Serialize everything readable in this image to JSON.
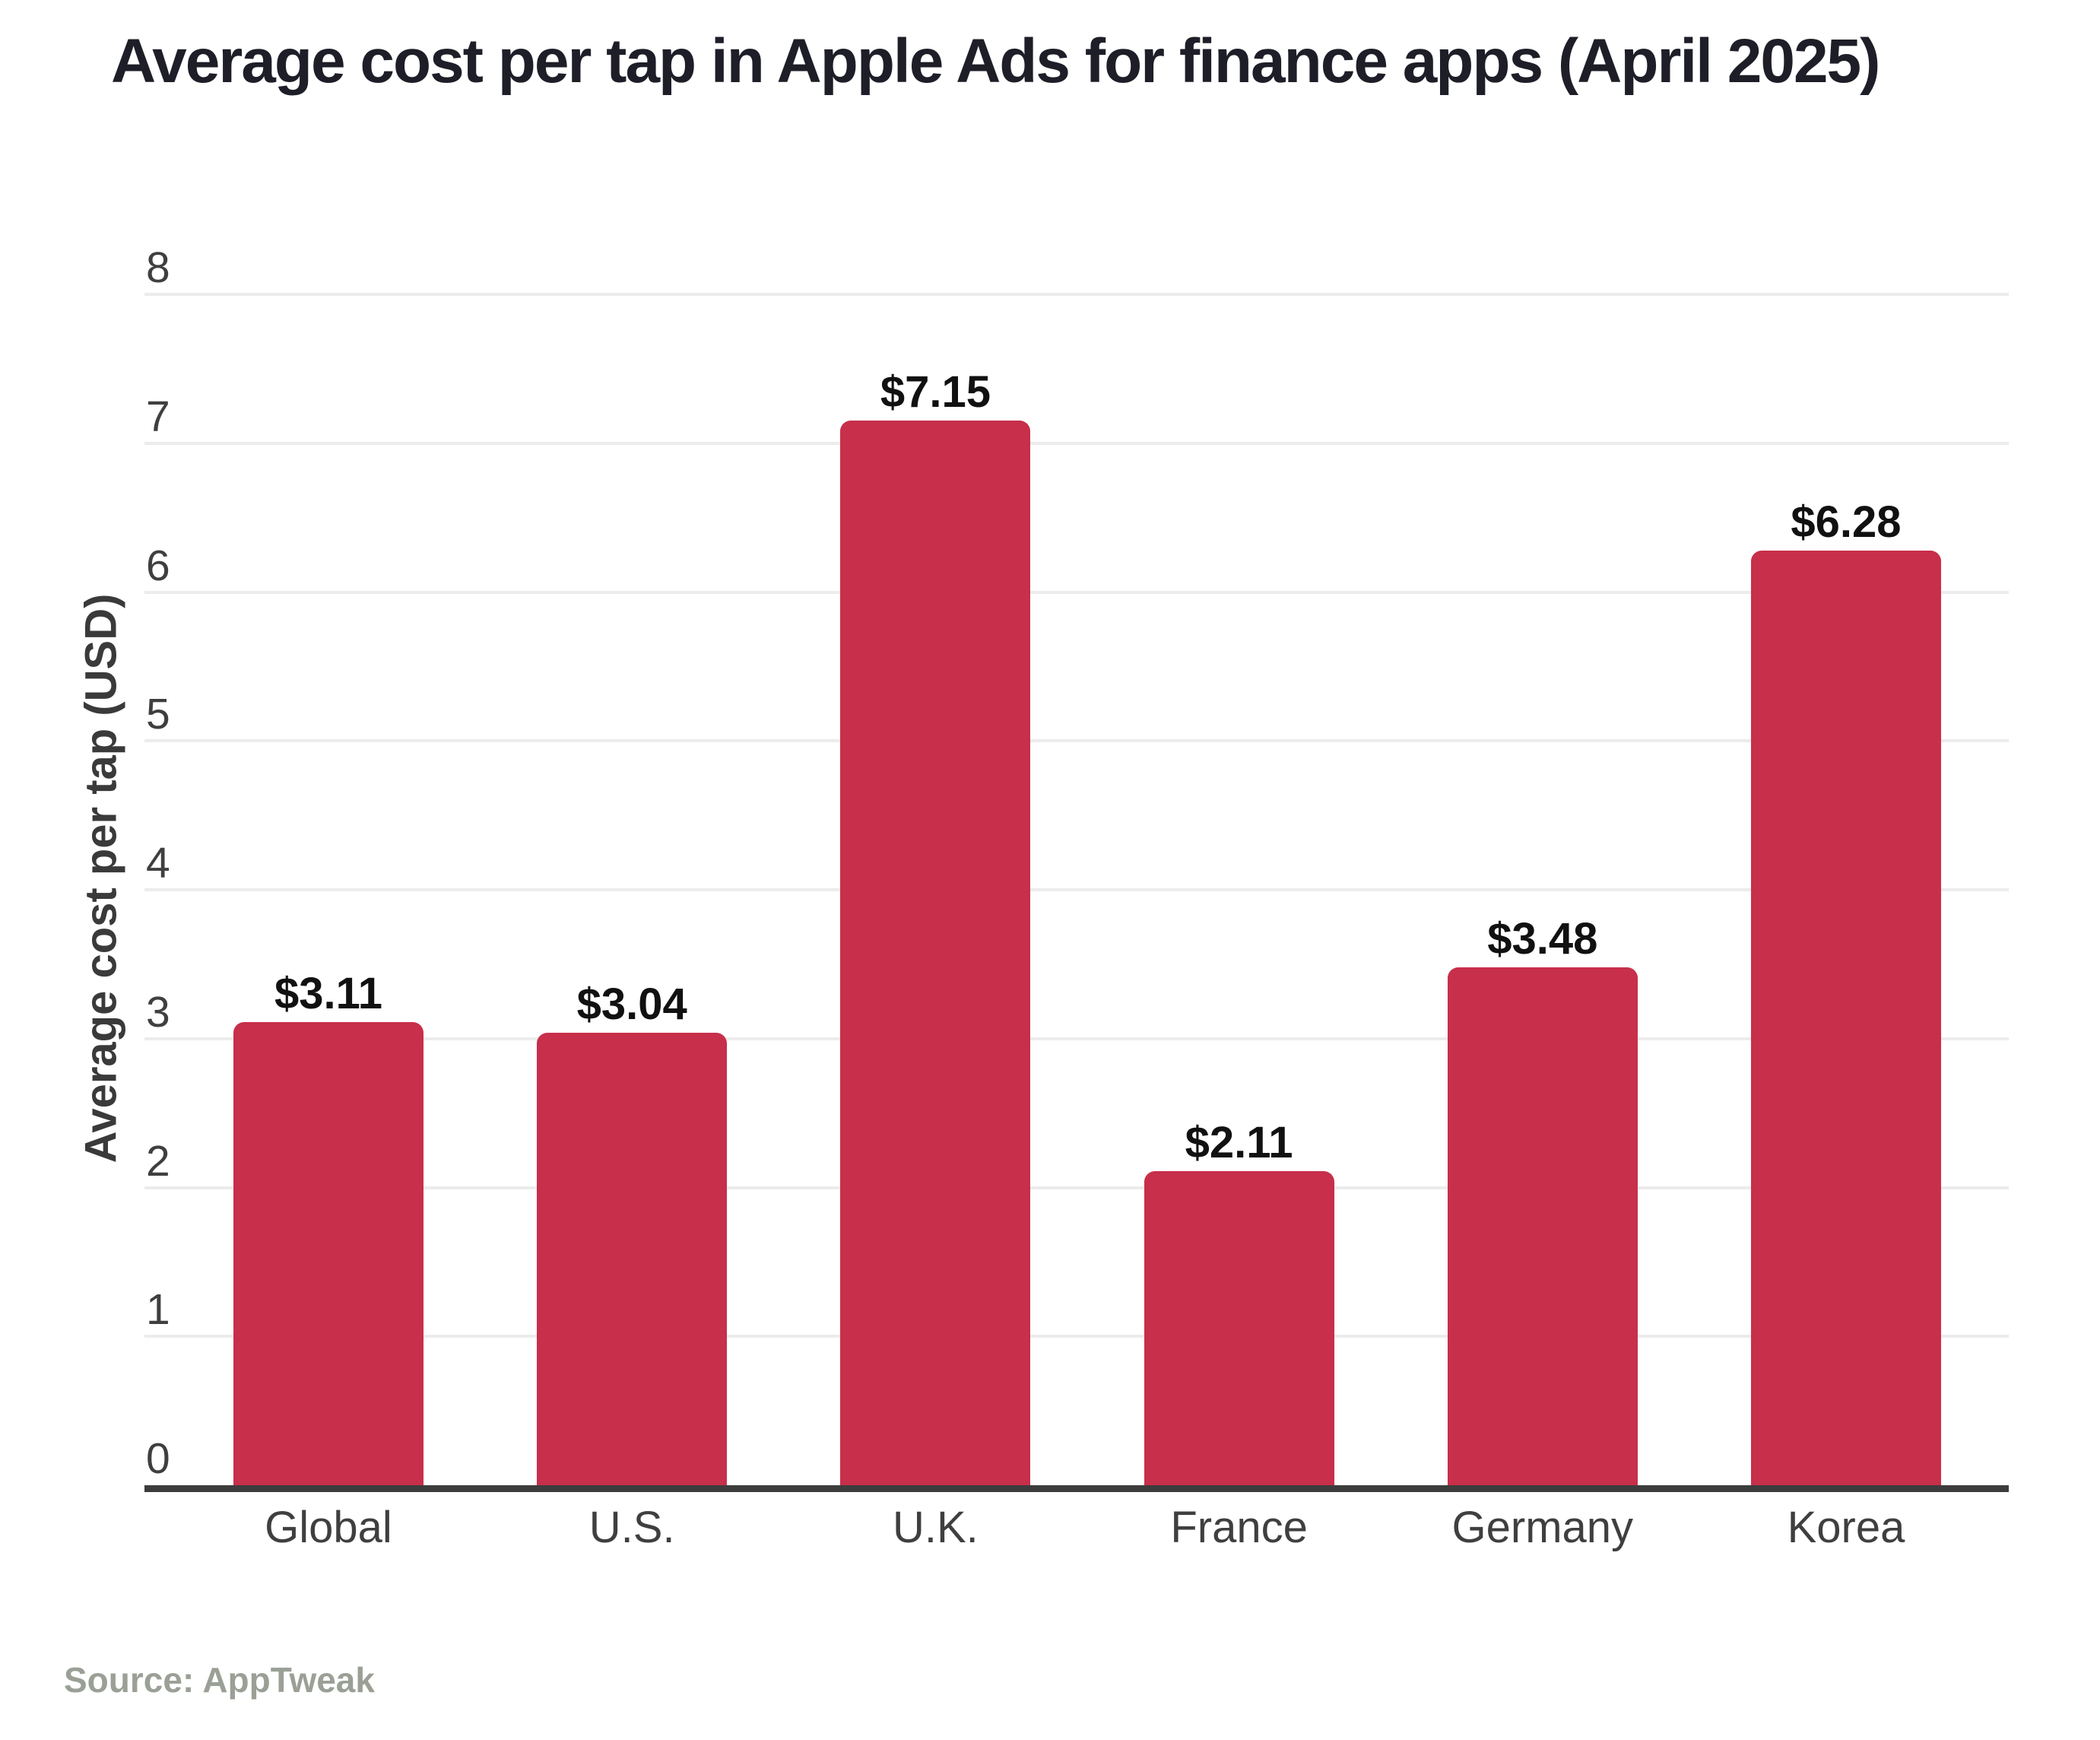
{
  "header": {
    "title": "Average cost per tap in Apple Ads for finance apps (April 2025)"
  },
  "footer": {
    "source": "Source: AppTweak"
  },
  "colors": {
    "bar": "#c72f4b",
    "grid": "#ececec",
    "axis_line": "#3c3c3c",
    "title_text": "#1e1e28",
    "axis_text": "#3f3f3f",
    "value_text": "#111111",
    "source_text": "#9aa096",
    "background": "#ffffff"
  },
  "chart_data": {
    "type": "bar",
    "title": "Average cost per tap in Apple Ads for finance apps (April 2025)",
    "categories": [
      "Global",
      "U.S.",
      "U.K.",
      "France",
      "Germany",
      "Korea"
    ],
    "values": [
      3.11,
      3.04,
      7.15,
      2.11,
      3.48,
      6.28
    ],
    "value_labels": [
      "$3.11",
      "$3.04",
      "$7.15",
      "$2.11",
      "$3.48",
      "$6.28"
    ],
    "xlabel": "",
    "ylabel": "Average cost per tap (USD)",
    "ylim": [
      0,
      8
    ],
    "yticks": [
      0,
      1,
      2,
      3,
      4,
      5,
      6,
      7,
      8
    ],
    "grid": "horizontal-only",
    "legend": "none",
    "source": "Source: AppTweak"
  }
}
